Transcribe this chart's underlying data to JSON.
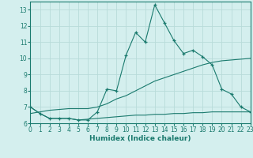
{
  "xlabel": "Humidex (Indice chaleur)",
  "background_color": "#d4efee",
  "grid_color": "#b8dbd9",
  "line_color": "#1a7a6e",
  "x_values": [
    0,
    1,
    2,
    3,
    4,
    5,
    6,
    7,
    8,
    9,
    10,
    11,
    12,
    13,
    14,
    15,
    16,
    17,
    18,
    19,
    20,
    21,
    22,
    23
  ],
  "line1_y": [
    7.0,
    6.6,
    6.3,
    6.3,
    6.3,
    6.2,
    6.2,
    6.7,
    8.1,
    8.0,
    10.2,
    11.6,
    11.0,
    13.3,
    12.2,
    11.1,
    10.3,
    10.5,
    10.1,
    9.6,
    8.1,
    7.8,
    7.0,
    6.7
  ],
  "line2_y": [
    7.0,
    6.6,
    6.3,
    6.3,
    6.3,
    6.2,
    6.25,
    6.3,
    6.35,
    6.4,
    6.45,
    6.5,
    6.5,
    6.55,
    6.55,
    6.6,
    6.6,
    6.65,
    6.65,
    6.7,
    6.7,
    6.7,
    6.7,
    6.7
  ],
  "line3_y": [
    6.6,
    6.7,
    6.8,
    6.85,
    6.9,
    6.9,
    6.9,
    7.0,
    7.2,
    7.5,
    7.7,
    8.0,
    8.3,
    8.6,
    8.8,
    9.0,
    9.2,
    9.4,
    9.6,
    9.75,
    9.85,
    9.9,
    9.95,
    10.0
  ],
  "xlim": [
    0,
    23
  ],
  "ylim": [
    6.0,
    13.5
  ],
  "yticks": [
    6,
    7,
    8,
    9,
    10,
    11,
    12,
    13
  ],
  "xticks": [
    0,
    1,
    2,
    3,
    4,
    5,
    6,
    7,
    8,
    9,
    10,
    11,
    12,
    13,
    14,
    15,
    16,
    17,
    18,
    19,
    20,
    21,
    22,
    23
  ],
  "tick_fontsize": 5.5,
  "xlabel_fontsize": 6.5
}
